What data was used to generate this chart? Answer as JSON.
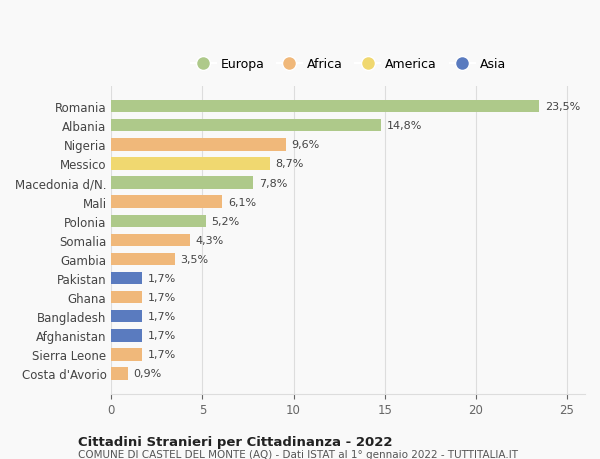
{
  "countries": [
    "Romania",
    "Albania",
    "Nigeria",
    "Messico",
    "Macedonia d/N.",
    "Mali",
    "Polonia",
    "Somalia",
    "Gambia",
    "Pakistan",
    "Ghana",
    "Bangladesh",
    "Afghanistan",
    "Sierra Leone",
    "Costa d'Avorio"
  ],
  "values": [
    23.5,
    14.8,
    9.6,
    8.7,
    7.8,
    6.1,
    5.2,
    4.3,
    3.5,
    1.7,
    1.7,
    1.7,
    1.7,
    1.7,
    0.9
  ],
  "labels": [
    "23,5%",
    "14,8%",
    "9,6%",
    "8,7%",
    "7,8%",
    "6,1%",
    "5,2%",
    "4,3%",
    "3,5%",
    "1,7%",
    "1,7%",
    "1,7%",
    "1,7%",
    "1,7%",
    "0,9%"
  ],
  "continents": [
    "Europa",
    "Europa",
    "Africa",
    "America",
    "Europa",
    "Africa",
    "Europa",
    "Africa",
    "Africa",
    "Asia",
    "Africa",
    "Asia",
    "Asia",
    "Africa",
    "Africa"
  ],
  "continent_colors": {
    "Europa": "#aec98a",
    "Africa": "#f0b87a",
    "America": "#f0d870",
    "Asia": "#5a7bbf"
  },
  "legend_order": [
    "Europa",
    "Africa",
    "America",
    "Asia"
  ],
  "title1": "Cittadini Stranieri per Cittadinanza - 2022",
  "title2": "COMUNE DI CASTEL DEL MONTE (AQ) - Dati ISTAT al 1° gennaio 2022 - TUTTITALIA.IT",
  "xlim": [
    0,
    26
  ],
  "xticks": [
    0,
    5,
    10,
    15,
    20,
    25
  ],
  "background_color": "#f9f9f9",
  "grid_color": "#dddddd"
}
